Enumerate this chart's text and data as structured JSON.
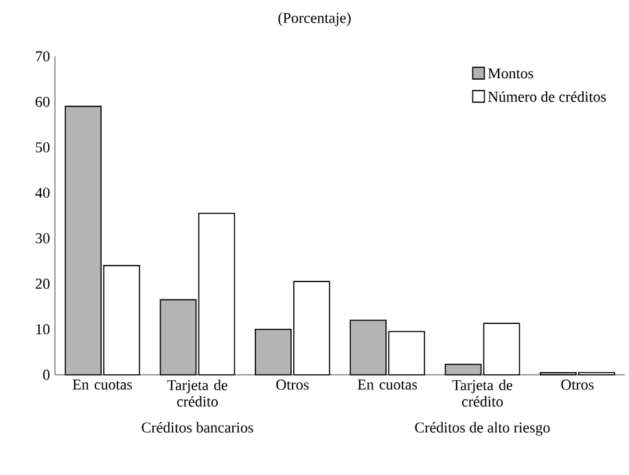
{
  "chart_data": {
    "type": "bar",
    "title": "(Porcentaje)",
    "categories": [
      "En cuotas",
      "Tarjeta de crédito",
      "Otros",
      "En cuotas",
      "Tarjeta de crédito",
      "Otros"
    ],
    "series": [
      {
        "name": "Montos",
        "color": "#b4b4b4",
        "values": [
          59,
          16.5,
          10,
          12,
          2.3,
          0.5
        ]
      },
      {
        "name": "Número de créditos",
        "color": "#ffffff",
        "values": [
          24,
          35.5,
          20.5,
          9.5,
          11.3,
          0.5
        ]
      }
    ],
    "ylim": [
      0,
      70
    ],
    "yticks": [
      0,
      10,
      20,
      30,
      40,
      50,
      60,
      70
    ],
    "legend": "top right",
    "grid": false,
    "annotations": [
      "Créditos bancarios",
      "Créditos de alto riesgo"
    ]
  }
}
